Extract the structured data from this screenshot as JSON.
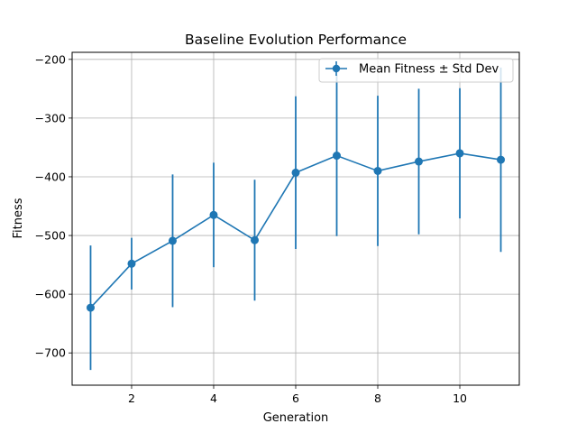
{
  "chart_data": {
    "type": "line",
    "title": "Baseline Evolution Performance",
    "xlabel": "Generation",
    "ylabel": "Fitness",
    "xlim": [
      0.55,
      11.45
    ],
    "ylim": [
      -755,
      -188
    ],
    "xticks": [
      2,
      4,
      6,
      8,
      10
    ],
    "yticks": [
      -700,
      -600,
      -500,
      -400,
      -300,
      -200
    ],
    "grid": true,
    "legend_position": "top-right",
    "color": "#1f77b4",
    "series": [
      {
        "name": "Mean Fitness ± Std Dev",
        "x": [
          1,
          2,
          3,
          4,
          5,
          6,
          7,
          8,
          9,
          10,
          11
        ],
        "y": [
          -623,
          -548,
          -509,
          -465,
          -508,
          -393,
          -364,
          -390,
          -374,
          -360,
          -371
        ],
        "error": [
          106,
          44,
          113,
          89,
          103,
          130,
          137,
          128,
          124,
          111,
          157
        ]
      }
    ]
  }
}
